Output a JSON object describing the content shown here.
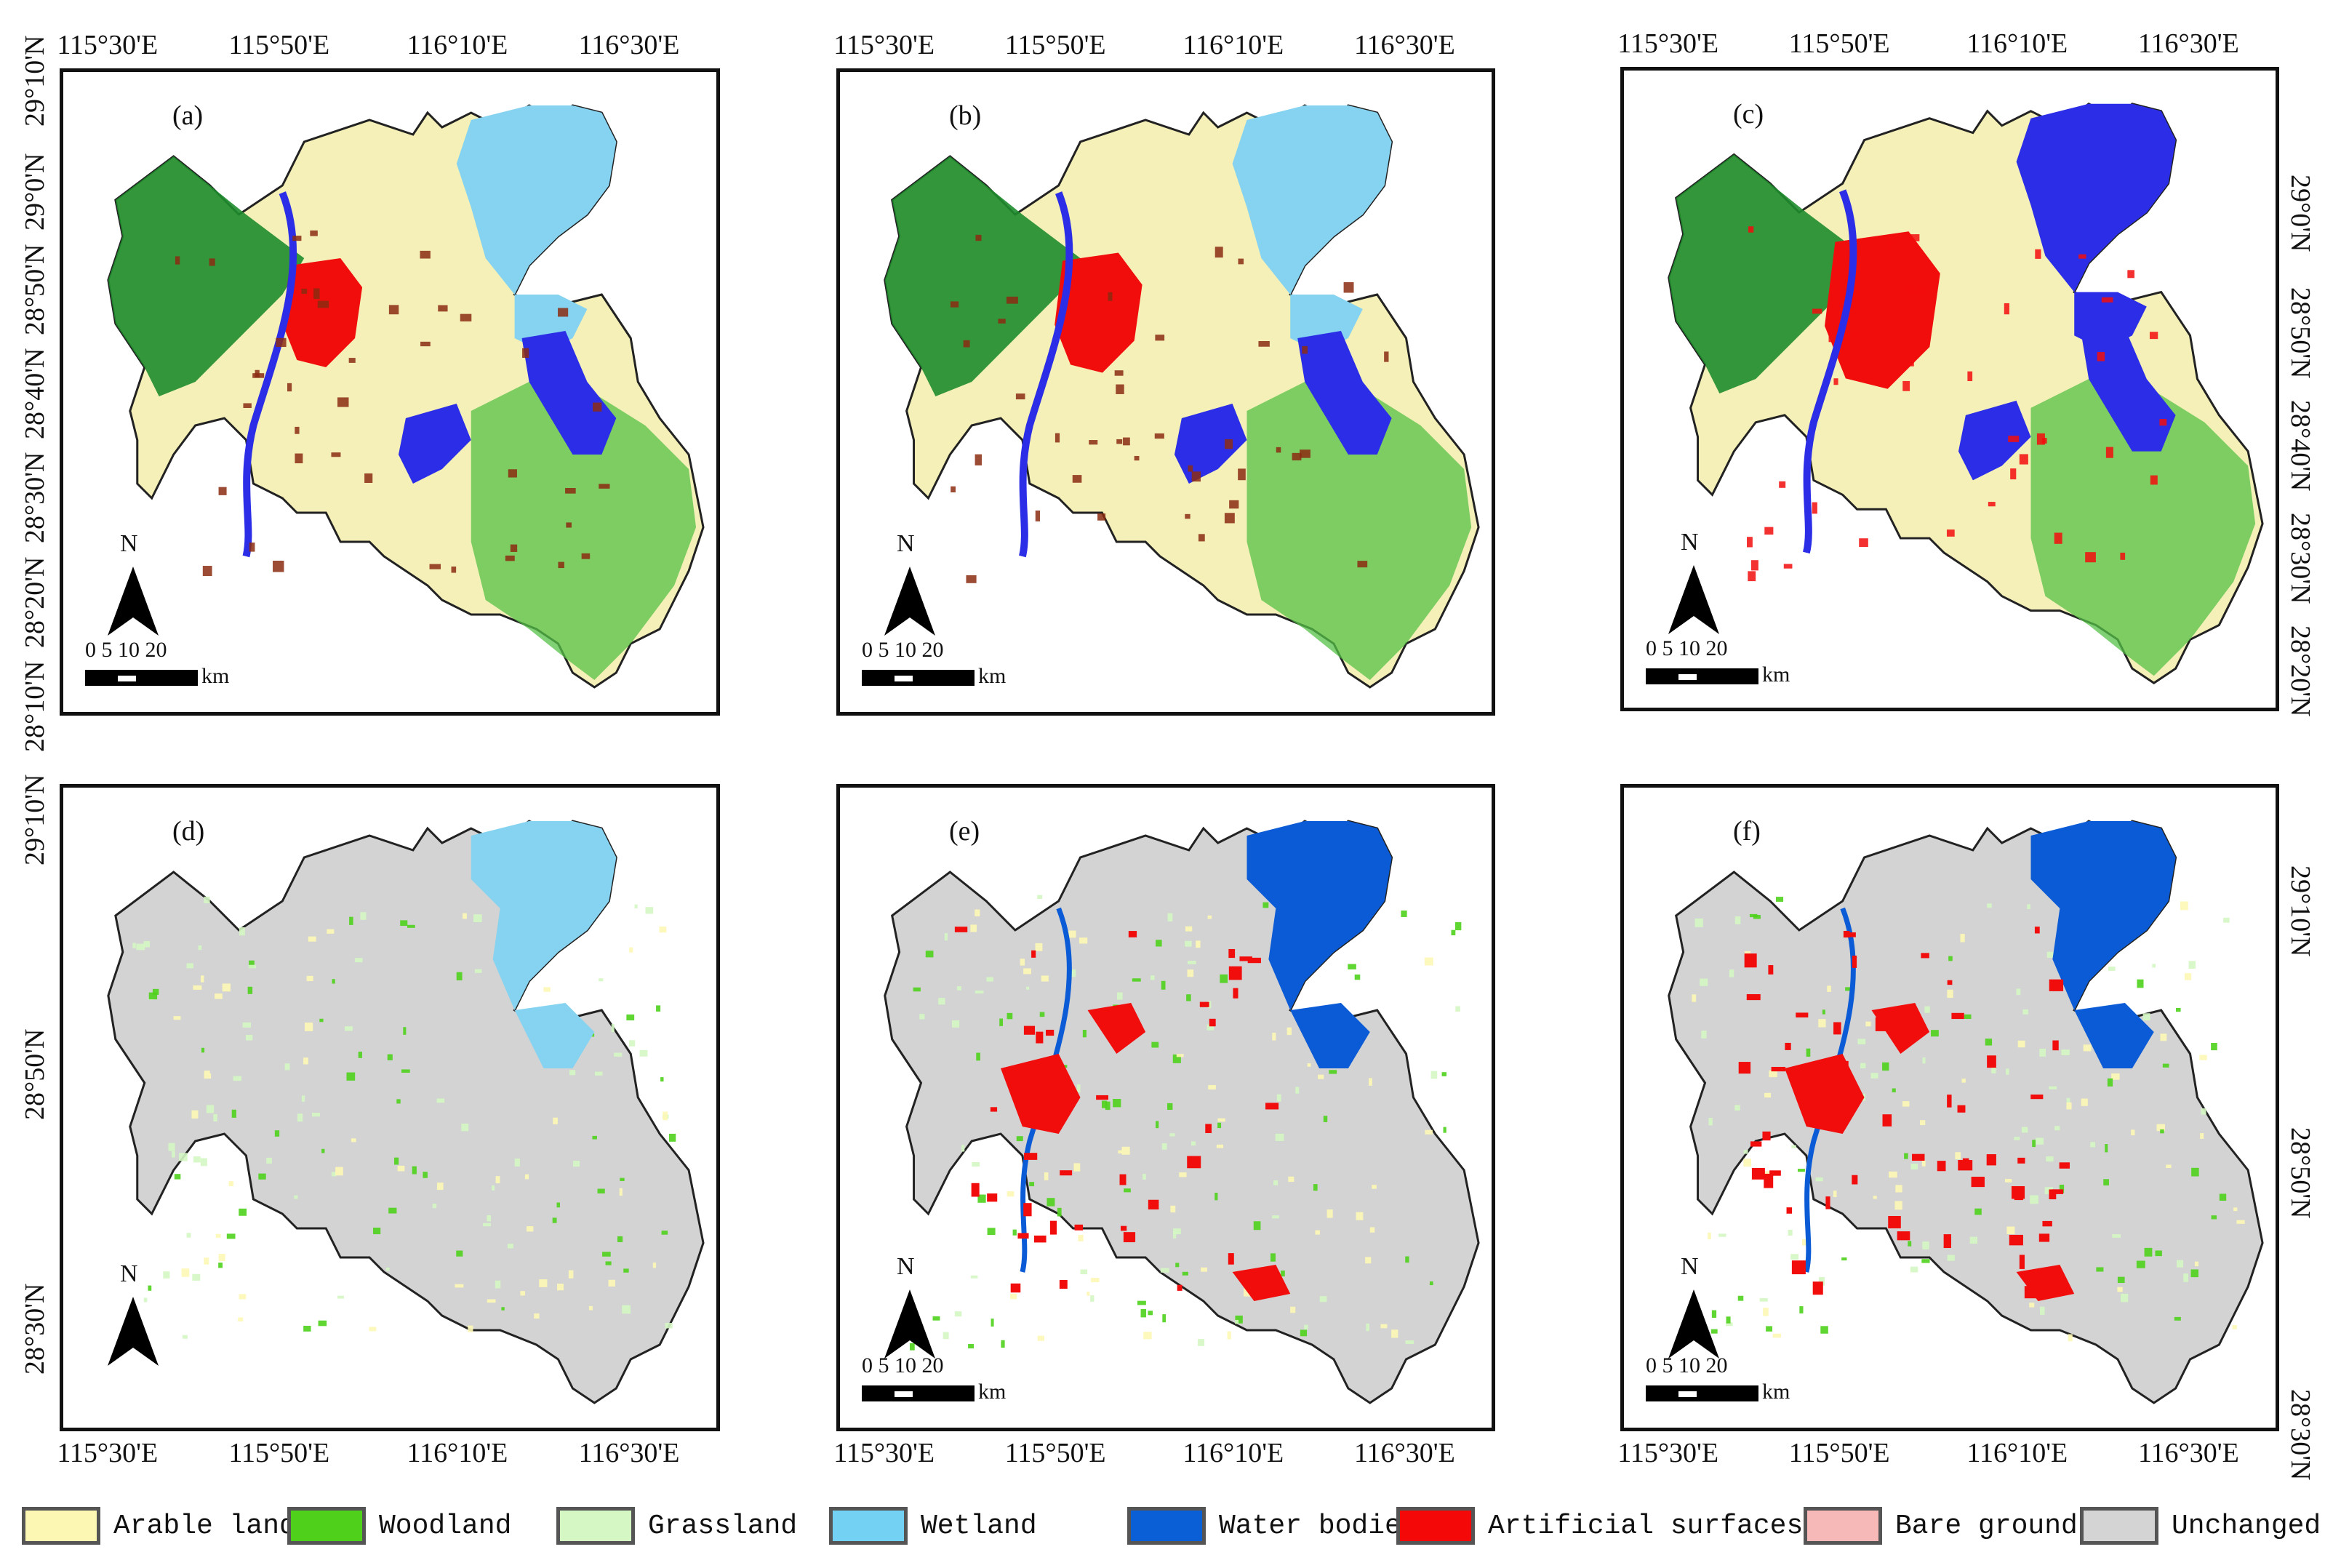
{
  "longitude_labels": [
    "115°30'E",
    "115°50'E",
    "116°10'E",
    "116°30'E"
  ],
  "latitude_labels": [
    "28°10'N",
    "28°20'N",
    "28°30'N",
    "28°40'N",
    "28°50'N",
    "29°0'N",
    "29°10'N"
  ],
  "panels": [
    {
      "label": "(a)"
    },
    {
      "label": "(b)"
    },
    {
      "label": "(c)"
    },
    {
      "label": "(d)"
    },
    {
      "label": "(e)"
    },
    {
      "label": "(f)"
    }
  ],
  "north_arrow": {
    "label": "N"
  },
  "scale_bar": {
    "ticks": "0  5 10      20",
    "unit": "km"
  },
  "legend": [
    {
      "label": "Arable land",
      "color": "#fdf7b4"
    },
    {
      "label": "Woodland",
      "color": "#4fd11c"
    },
    {
      "label": "Grassland",
      "color": "#d4f7c3"
    },
    {
      "label": "Wetland",
      "color": "#73d2f4"
    },
    {
      "label": "Water bodies",
      "color": "#0a5ed6"
    },
    {
      "label": "Artificial surfaces",
      "color": "#f50808"
    },
    {
      "label": "Bare ground",
      "color": "#f7b8b8"
    },
    {
      "label": "Unchanged",
      "color": "#d4d4d4"
    }
  ],
  "colors": {
    "arable_map": "#f4f0b8",
    "woodland_map": "#1e8c2c",
    "grassland_map": "#55c247",
    "wetland_map": "#85d3f0",
    "water_map": "#2b2ee6",
    "water_change": "#0b5bd6",
    "artificial": "#f20d0d",
    "unchanged": "#d3d3d3"
  }
}
